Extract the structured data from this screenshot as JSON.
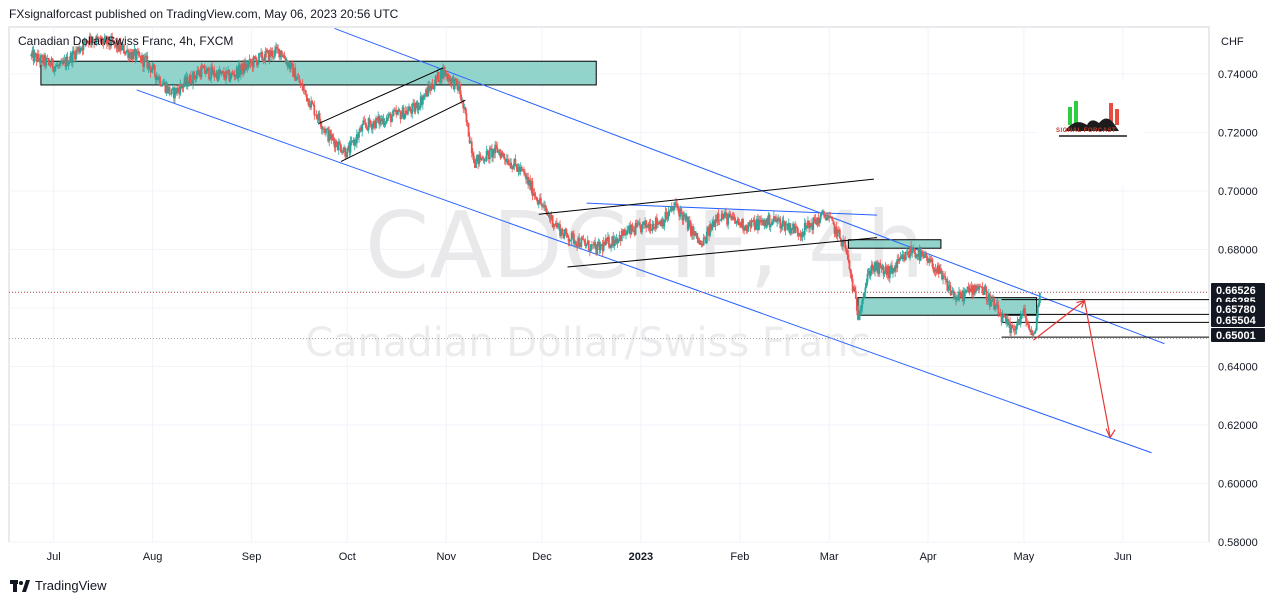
{
  "header": {
    "publisher_line": "FXsignalforcast published on TradingView.com, May 06, 2023 20:56 UTC"
  },
  "footer": {
    "brand": "TradingView"
  },
  "watermark": {
    "symbol": "CADCHF, 4h",
    "name": "Canadian Dollar/Swiss Franc"
  },
  "logo_panel": {
    "name": "SIGNAL FORCAST"
  },
  "chart_data": {
    "type": "candlestick",
    "title": "Canadian Dollar/Swiss Franc, 4h, FXCM",
    "currency": "CHF",
    "ylim": [
      0.58,
      0.756
    ],
    "y_ticks": [
      "0.74000",
      "0.72000",
      "0.70000",
      "0.68000",
      "0.66000",
      "0.64000",
      "0.62000",
      "0.60000",
      "0.58000"
    ],
    "x_ticks": [
      "Jul",
      "Aug",
      "Sep",
      "Oct",
      "Nov",
      "Dec",
      "2023",
      "Feb",
      "Mar",
      "Apr",
      "May",
      "Jun"
    ],
    "price_path": [
      [
        "2022-06-24",
        0.746
      ],
      [
        "2022-07-03",
        0.742
      ],
      [
        "2022-07-12",
        0.752
      ],
      [
        "2022-07-20",
        0.75
      ],
      [
        "2022-07-30",
        0.744
      ],
      [
        "2022-08-07",
        0.733
      ],
      [
        "2022-08-16",
        0.741
      ],
      [
        "2022-08-25",
        0.739
      ],
      [
        "2022-09-03",
        0.745
      ],
      [
        "2022-09-10",
        0.748
      ],
      [
        "2022-09-15",
        0.739
      ],
      [
        "2022-09-25",
        0.719
      ],
      [
        "2022-10-01",
        0.713
      ],
      [
        "2022-10-06",
        0.722
      ],
      [
        "2022-10-14",
        0.725
      ],
      [
        "2022-10-22",
        0.728
      ],
      [
        "2022-10-31",
        0.741
      ],
      [
        "2022-11-05",
        0.735
      ],
      [
        "2022-11-10",
        0.71
      ],
      [
        "2022-11-17",
        0.714
      ],
      [
        "2022-11-25",
        0.706
      ],
      [
        "2022-12-02",
        0.693
      ],
      [
        "2022-12-08",
        0.685
      ],
      [
        "2022-12-18",
        0.68
      ],
      [
        "2022-12-28",
        0.686
      ],
      [
        "2023-01-08",
        0.69
      ],
      [
        "2023-01-12",
        0.695
      ],
      [
        "2023-01-20",
        0.681
      ],
      [
        "2023-01-25",
        0.692
      ],
      [
        "2023-02-03",
        0.688
      ],
      [
        "2023-02-12",
        0.69
      ],
      [
        "2023-02-20",
        0.686
      ],
      [
        "2023-02-28",
        0.692
      ],
      [
        "2023-03-06",
        0.681
      ],
      [
        "2023-03-10",
        0.658
      ],
      [
        "2023-03-14",
        0.674
      ],
      [
        "2023-03-20",
        0.672
      ],
      [
        "2023-03-27",
        0.68
      ],
      [
        "2023-04-03",
        0.674
      ],
      [
        "2023-04-10",
        0.663
      ],
      [
        "2023-04-17",
        0.668
      ],
      [
        "2023-04-22",
        0.66
      ],
      [
        "2023-04-27",
        0.652
      ],
      [
        "2023-05-01",
        0.658
      ],
      [
        "2023-05-04",
        0.649
      ],
      [
        "2023-05-06",
        0.6653
      ]
    ],
    "last_price": "0.66526",
    "price_labels": [
      {
        "text": "0.66526",
        "value": 0.66526,
        "color": "#131722"
      },
      {
        "text": "0.66285",
        "value": 0.66285,
        "color": "#131722"
      },
      {
        "text": "0.65780",
        "value": 0.6578,
        "color": "#131722"
      },
      {
        "text": "0.65504",
        "value": 0.65504,
        "color": "#131722"
      },
      {
        "text": "0.65001",
        "value": 0.65001,
        "color": "#131722"
      }
    ],
    "horizontal_levels": [
      0.66285,
      0.6578,
      0.65504,
      0.65001
    ],
    "zones": [
      {
        "from": "2022-06-27",
        "to": "2022-12-18",
        "low": 0.7362,
        "high": 0.7443
      },
      {
        "from": "2023-03-07",
        "to": "2023-04-05",
        "low": 0.6804,
        "high": 0.6833
      },
      {
        "from": "2023-03-10",
        "to": "2023-05-05",
        "low": 0.6575,
        "high": 0.6635
      }
    ],
    "channel_lines": [
      {
        "x1": "2022-09-27",
        "y1": 0.7555,
        "x2": "2023-06-14",
        "y2": 0.6478
      },
      {
        "x1": "2022-07-27",
        "y1": 0.7345,
        "x2": "2023-06-10",
        "y2": 0.6105
      },
      {
        "x1": "2022-12-15",
        "y1": 0.6958,
        "x2": "2023-03-16",
        "y2": 0.6917
      }
    ],
    "pattern_lines": [
      {
        "x1": "2022-09-22",
        "y1": 0.723,
        "x2": "2022-10-31",
        "y2": 0.742
      },
      {
        "x1": "2022-09-29",
        "y1": 0.71,
        "x2": "2022-11-07",
        "y2": 0.731
      },
      {
        "x1": "2022-11-30",
        "y1": 0.692,
        "x2": "2023-03-15",
        "y2": 0.704
      },
      {
        "x1": "2022-12-09",
        "y1": 0.674,
        "x2": "2023-03-16",
        "y2": 0.684
      }
    ],
    "forecast_path": [
      [
        "2023-05-04",
        0.649
      ],
      [
        "2023-05-20",
        0.6625
      ],
      [
        "2023-05-28",
        0.616
      ]
    ],
    "forecast_color": "#e53935",
    "colors": {
      "up": "#26a69a",
      "down": "#ef5350",
      "channel": "#2962ff",
      "zone": "#7fccc3"
    }
  }
}
